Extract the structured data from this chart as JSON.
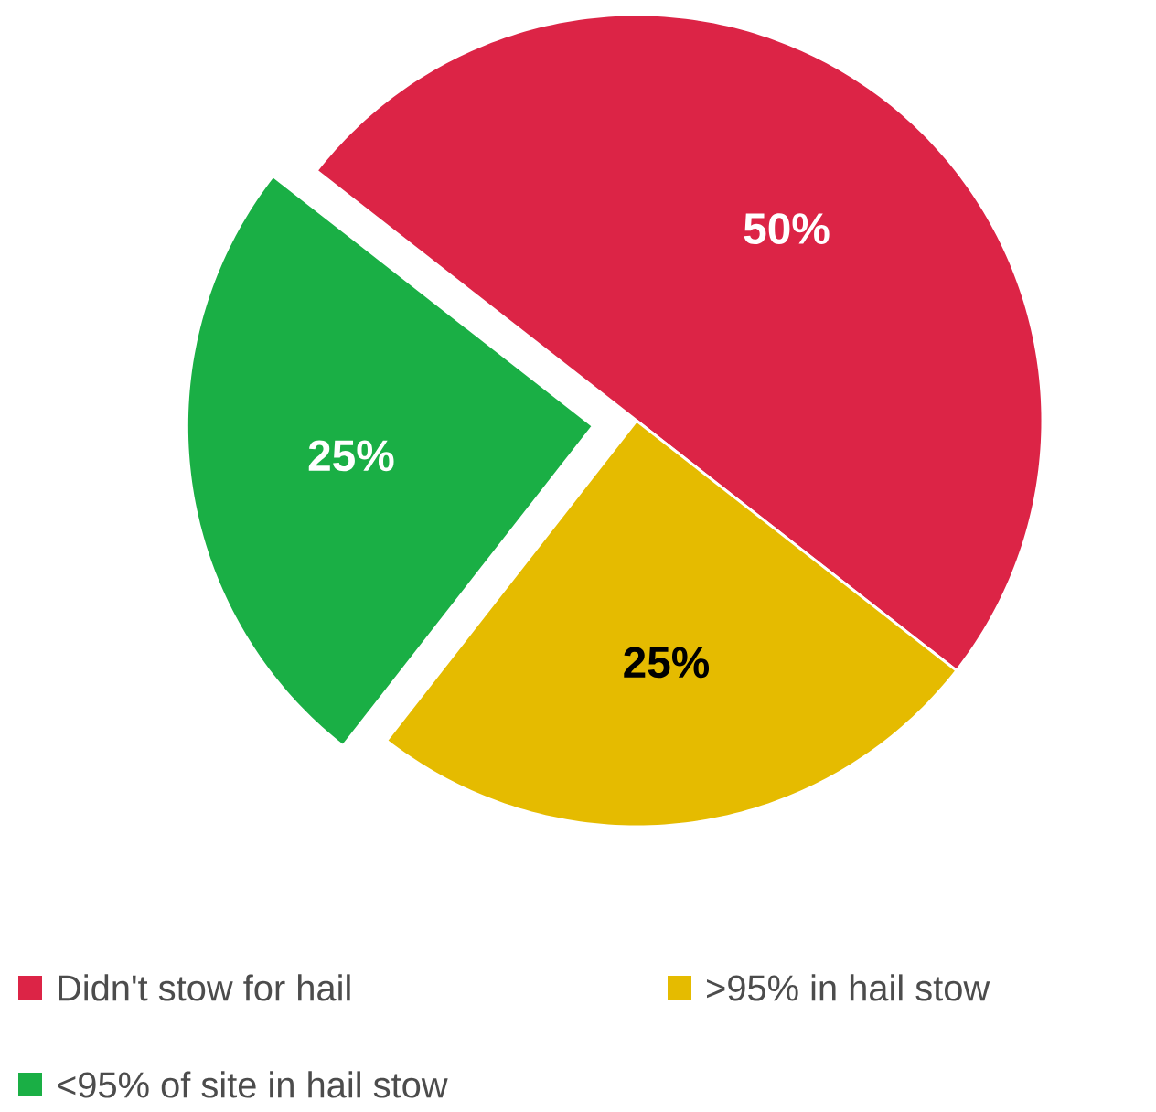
{
  "chart_data": {
    "type": "pie",
    "categories": [
      "Didn't stow for hail",
      ">95% in hail stow",
      "<95% of site in hail stow"
    ],
    "values": [
      50,
      25,
      25
    ],
    "colors": [
      "#dc2446",
      "#e5bb00",
      "#1aaf45"
    ],
    "value_labels": [
      "50%",
      "25%",
      "25%"
    ],
    "legend": "bottom"
  }
}
